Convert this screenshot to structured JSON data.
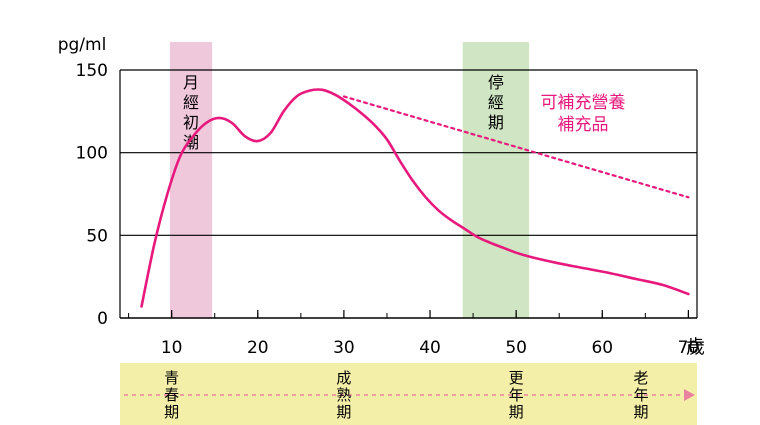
{
  "chart_data": {
    "type": "line",
    "title": "",
    "y_unit_label": "pg/ml",
    "x_unit_label": "歲",
    "ylim": [
      0,
      150
    ],
    "xlim": [
      4,
      71
    ],
    "y_ticks": [
      0,
      50,
      100,
      150
    ],
    "x_ticks": [
      10,
      20,
      30,
      40,
      50,
      60,
      70
    ],
    "x_tick_labels": [
      "10",
      "20",
      "30",
      "40",
      "50",
      "60",
      "70"
    ],
    "y_tick_labels": [
      "0",
      "50",
      "100",
      "150"
    ],
    "bands": [
      {
        "name": "menarche",
        "label": "月經初潮",
        "chars": [
          "月",
          "經",
          "初",
          "潮"
        ],
        "x_start": 9.8,
        "x_end": 14.7,
        "color": "#f0c8dc"
      },
      {
        "name": "menopause",
        "label": "停經期",
        "chars": [
          "停",
          "經",
          "期"
        ],
        "x_start": 43.8,
        "x_end": 51.5,
        "color": "#cfe5c3"
      }
    ],
    "series": [
      {
        "style": "solid",
        "color": "#e8197d",
        "x": [
          6.5,
          8,
          9.5,
          11,
          12.5,
          14,
          15.5,
          17,
          18.5,
          20,
          21.5,
          23,
          24.5,
          26,
          27.5,
          29,
          30.5,
          32,
          33.5,
          35,
          36.5,
          38,
          39.5,
          41,
          42.5,
          44,
          45.5,
          47,
          48.5,
          50,
          52,
          55,
          58,
          61,
          64,
          67,
          70
        ],
        "values": [
          7,
          45,
          75,
          98,
          110,
          118,
          121,
          118,
          110,
          107,
          112,
          125,
          134,
          137.5,
          138,
          135,
          130,
          124,
          117,
          108,
          95,
          83,
          73,
          65,
          59,
          54,
          49,
          45.5,
          42.5,
          39.5,
          36.5,
          33,
          30,
          27,
          23.5,
          20,
          14.5
        ]
      },
      {
        "style": "dotted",
        "color": "#e8197d",
        "x": [
          30,
          70
        ],
        "values": [
          134,
          73
        ]
      }
    ],
    "annotation": {
      "lines": [
        "可補充營養",
        "補充品"
      ],
      "color": "#e8197d"
    }
  },
  "stages": {
    "labels": [
      {
        "name": "youth",
        "chars": [
          "青",
          "春",
          "期"
        ],
        "x": 10
      },
      {
        "name": "maturity",
        "chars": [
          "成",
          "熟",
          "期"
        ],
        "x": 30
      },
      {
        "name": "menopause",
        "chars": [
          "更",
          "年",
          "期"
        ],
        "x": 50
      },
      {
        "name": "old-age",
        "chars": [
          "老",
          "年",
          "期"
        ],
        "x": 64.5
      }
    ],
    "band_color": "#f4efa8",
    "arrow_color": "#e8829f"
  }
}
